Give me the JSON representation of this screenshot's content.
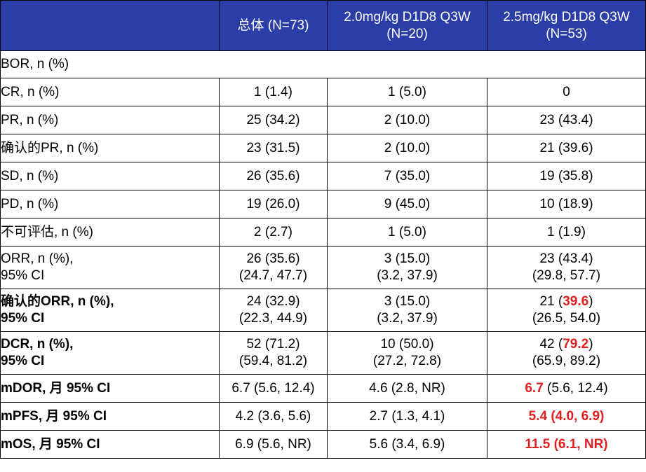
{
  "header": {
    "col_total": "总体 (N=73)",
    "col_20_line1": "2.0mg/kg D1D8 Q3W",
    "col_20_line2": "(N=20)",
    "col_25_line1": "2.5mg/kg D1D8 Q3W",
    "col_25_line2": "(N=53)"
  },
  "section_bor": "BOR, n (%)",
  "rows": {
    "cr": {
      "label": "CR, n (%)",
      "total": "1 (1.4)",
      "d20": "1 (5.0)",
      "d25": "0"
    },
    "pr": {
      "label": "PR, n (%)",
      "total": "25 (34.2)",
      "d20": "2 (10.0)",
      "d25": "23 (43.4)"
    },
    "cpr": {
      "label": "确认的PR, n (%)",
      "total": "23 (31.5)",
      "d20": "2 (10.0)",
      "d25": "21 (39.6)"
    },
    "sd": {
      "label": "SD, n (%)",
      "total": "26 (35.6)",
      "d20": "7 (35.0)",
      "d25": "19 (35.8)"
    },
    "pd": {
      "label": "PD, n (%)",
      "total": "19 (26.0)",
      "d20": "9 (45.0)",
      "d25": "10 (18.9)"
    },
    "ne": {
      "label": "不可评估, n (%)",
      "total": "2 (2.7)",
      "d20": "1 (5.0)",
      "d25": "1 (1.9)"
    },
    "orr": {
      "label1": "ORR, n (%),",
      "label2": "95% CI",
      "total1": "26 (35.6)",
      "total2": "(24.7, 47.7)",
      "d20_1": "3 (15.0)",
      "d20_2": "(3.2, 37.9)",
      "d25_1": "23 (43.4)",
      "d25_2": "(29.8, 57.7)"
    },
    "corr": {
      "label1": "确认的ORR, n (%),",
      "label2": "95% CI",
      "total1": "24 (32.9)",
      "total2": "(22.3, 44.9)",
      "d20_1": "3 (15.0)",
      "d20_2": "(3.2, 37.9)",
      "d25_1a": "21 (",
      "d25_1b": "39.6",
      "d25_1c": ")",
      "d25_2": "(26.5, 54.0)"
    },
    "dcr": {
      "label1": "DCR, n (%),",
      "label2": "95% CI",
      "total1": "52 (71.2)",
      "total2": "(59.4, 81.2)",
      "d20_1": "10 (50.0)",
      "d20_2": "(27.2, 72.8)",
      "d25_1a": "42 (",
      "d25_1b": "79.2",
      "d25_1c": ")",
      "d25_2": "(65.9, 89.2)"
    },
    "mdor": {
      "label": "mDOR, 月 95% CI",
      "total": "6.7 (5.6, 12.4)",
      "d20": "4.6 (2.8, NR)",
      "d25_a": "6.7",
      "d25_b": " (5.6, 12.4)"
    },
    "mpfs": {
      "label": "mPFS, 月 95% CI",
      "total": "4.2 (3.6, 5.6)",
      "d20": "2.7 (1.3, 4.1)",
      "d25": "5.4 (4.0, 6.9)"
    },
    "mos": {
      "label": "mOS, 月 95% CI",
      "total": "6.9 (5.6, NR)",
      "d20": "5.6 (3.4, 6.9)",
      "d25": "11.5 (6.1, NR)"
    }
  },
  "colors": {
    "header_bg": "#2b3ea8",
    "highlight": "#e02020"
  }
}
